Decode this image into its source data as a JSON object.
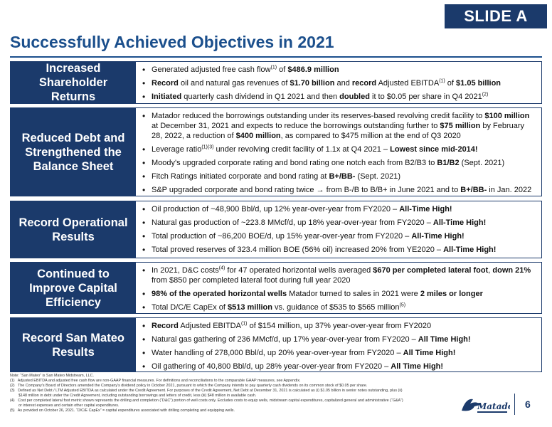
{
  "slide_tag": "SLIDE A",
  "title": "Successfully Achieved Objectives in 2021",
  "sections": [
    {
      "label": "Increased Shareholder Returns",
      "bullets": [
        [
          {
            "t": "Generated adjusted free cash flow"
          },
          {
            "t": "(1)",
            "sup": true
          },
          {
            "t": " of "
          },
          {
            "t": "$486.9 million",
            "b": true
          }
        ],
        [
          {
            "t": "Record",
            "b": true
          },
          {
            "t": " oil and natural gas revenues of "
          },
          {
            "t": "$1.70 billion",
            "b": true
          },
          {
            "t": " and "
          },
          {
            "t": "record",
            "b": true
          },
          {
            "t": " Adjusted EBITDA"
          },
          {
            "t": "(1)",
            "sup": true
          },
          {
            "t": " of "
          },
          {
            "t": "$1.05 billion",
            "b": true
          }
        ],
        [
          {
            "t": "Initiated",
            "b": true
          },
          {
            "t": " quarterly cash dividend in Q1 2021 and then "
          },
          {
            "t": "doubled",
            "b": true
          },
          {
            "t": " it to $0.05 per share in Q4 2021"
          },
          {
            "t": "(2)",
            "sup": true
          }
        ]
      ]
    },
    {
      "label": "Reduced Debt and Strengthened the Balance Sheet",
      "bullets": [
        [
          {
            "t": "Matador reduced the borrowings outstanding under its reserves-based revolving credit facility to "
          },
          {
            "t": "$100 million",
            "b": true
          },
          {
            "t": " at December 31, 2021 and expects to reduce the borrowings outstanding further to "
          },
          {
            "t": "$75 million",
            "b": true
          },
          {
            "t": " by February 28, 2022, a reduction of "
          },
          {
            "t": "$400 million",
            "b": true
          },
          {
            "t": ", as compared to $475 million at the end of Q3 2020"
          }
        ],
        [
          {
            "t": "Leverage ratio"
          },
          {
            "t": "(1)(3)",
            "sup": true
          },
          {
            "t": " under revolving credit facility of 1.1x at Q4 2021 – "
          },
          {
            "t": "Lowest since mid-2014!",
            "b": true
          }
        ],
        [
          {
            "t": "Moody's upgraded corporate rating and bond rating one notch each from B2/B3 to "
          },
          {
            "t": "B1/B2",
            "b": true
          },
          {
            "t": " (Sept. 2021)"
          }
        ],
        [
          {
            "t": "Fitch Ratings initiated corporate and bond rating at "
          },
          {
            "t": "B+/BB-",
            "b": true
          },
          {
            "t": " (Sept. 2021)"
          }
        ],
        [
          {
            "t": "S&P upgraded corporate and bond rating twice → from B-/B to B/B+ in June 2021 and to "
          },
          {
            "t": "B+/BB-",
            "b": true
          },
          {
            "t": " in Jan. 2022"
          }
        ]
      ]
    },
    {
      "label": "Record Operational Results",
      "bullets": [
        [
          {
            "t": "Oil production of ~48,900 Bbl/d, up 12% year-over-year from FY2020 – "
          },
          {
            "t": "All-Time High!",
            "b": true
          }
        ],
        [
          {
            "t": "Natural gas production of ~223.8 MMcf/d, up 18% year-over-year from FY2020 – "
          },
          {
            "t": "All-Time High!",
            "b": true
          }
        ],
        [
          {
            "t": "Total production of ~86,200 BOE/d, up 15% year-over-year from FY2020 – "
          },
          {
            "t": "All-Time High!",
            "b": true
          }
        ],
        [
          {
            "t": "Total proved reserves of 323.4 million BOE (56% oil) increased 20% from YE2020 – "
          },
          {
            "t": "All-Time High!",
            "b": true
          }
        ]
      ]
    },
    {
      "label": "Continued to Improve Capital Efficiency",
      "bullets": [
        [
          {
            "t": "In 2021, D&C costs"
          },
          {
            "t": "(4)",
            "sup": true
          },
          {
            "t": " for 47 operated horizontal wells averaged "
          },
          {
            "t": "$670 per completed lateral foot",
            "b": true
          },
          {
            "t": ", "
          },
          {
            "t": "down 21%",
            "b": true
          },
          {
            "t": " from $850 per completed lateral foot during full year 2020"
          }
        ],
        [
          {
            "t": "98% of the operated horizontal wells",
            "b": true
          },
          {
            "t": " Matador turned to sales in 2021 were "
          },
          {
            "t": "2 miles or longer",
            "b": true
          }
        ],
        [
          {
            "t": "Total D/C/E CapEx of "
          },
          {
            "t": "$513 million",
            "b": true
          },
          {
            "t": " vs. guidance of $535 to $565 million"
          },
          {
            "t": "(5)",
            "sup": true
          }
        ]
      ]
    },
    {
      "label": "Record San Mateo Results",
      "bullets": [
        [
          {
            "t": "Record",
            "b": true
          },
          {
            "t": " Adjusted EBITDA"
          },
          {
            "t": "(1)",
            "sup": true
          },
          {
            "t": " of $154 million, up 37% year-over-year from FY2020"
          }
        ],
        [
          {
            "t": "Natural gas gathering of 236 MMcf/d, up 17% year-over-year from FY2020 – "
          },
          {
            "t": "All Time High!",
            "b": true
          }
        ],
        [
          {
            "t": "Water handling of 278,000 Bbl/d, up 20% year-over-year from FY2020 – "
          },
          {
            "t": "All Time High!",
            "b": true
          }
        ],
        [
          {
            "t": "Oil gathering of 40,800 Bbl/d, up 28% year-over-year from FY2020 – "
          },
          {
            "t": "All Time High!",
            "b": true
          }
        ]
      ]
    }
  ],
  "notes": [
    "Note: “San Mateo” is San Mateo Midstream, LLC.",
    "(1)   Adjusted EBITDA and adjusted free cash flow are non-GAAP financial measures. For definitions and reconciliations to the comparable GAAP measures, see Appendix.",
    "(2)   The Company's Board of Directors amended the Company's dividend policy in October 2021, pursuant to which the Company intends to pay quarterly cash dividends on its common stock of $0.05 per share.",
    "(3)   Defined as Net Debt / LTM Adjusted EBITDA as calculated under the Credit Agreement. For purposes of the Credit Agreement, Net Debt at December 31, 2021 is calculated as (i) $1.05 billion in senior notes outstanding, plus (ii)",
    "        $148 million in debt under the Credit Agreement, including outstanding borrowings and letters of credit, less (iii) $48 million in available cash.",
    "(4)   Cost per completed lateral foot metric shown represents the drilling and completion (“D&C”) portion of well costs only. Excludes costs to equip wells, midstream capital expenditures, capitalized general and administrative (“G&A”)",
    "        or interest expenses and certain other capital expenditures.",
    "(5)   As provided on October 26, 2021. “D/C/E CapEx” = capital expenditures associated with drilling completing and equipping wells."
  ],
  "page_number": "6",
  "logo_icon": "matador-logo-icon",
  "colors": {
    "navy": "#1b3a6b",
    "title_blue": "#1b4f8c"
  }
}
